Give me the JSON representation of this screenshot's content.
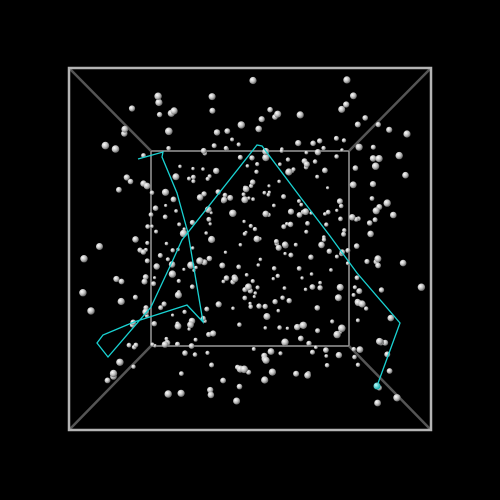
{
  "scene": {
    "background": "#000000",
    "box_color": "#b4b4b4",
    "edge_color": "#6e6e6e",
    "particle_color": "#c8c8c8",
    "path_color": "#19d2d2",
    "particle_count": 400
  }
}
